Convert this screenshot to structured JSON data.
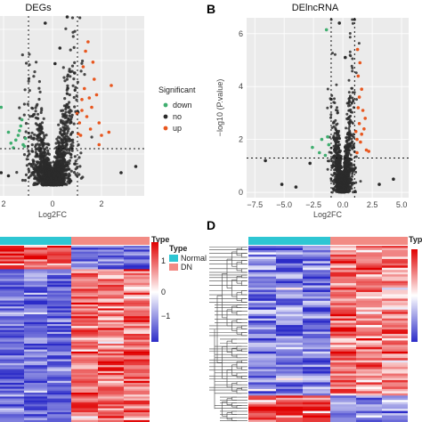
{
  "colors": {
    "down": "#3fae6f",
    "no": "#2b2b2b",
    "up": "#e8571f",
    "normal": "#2ec6d3",
    "dn": "#f28b84",
    "heat_low": "#2c2cc8",
    "heat_mid": "#ffffff",
    "heat_high": "#e00000"
  },
  "panel_labels": {
    "b": "B",
    "d": "D"
  },
  "chart_data": [
    {
      "type": "scatter",
      "title": "DEGs",
      "xlabel": "Log2FC",
      "ylabel": "",
      "x_ticks": [
        "2",
        "0",
        "2"
      ],
      "x_tick_values": [
        -2,
        0,
        2
      ],
      "thresholds": {
        "x": [
          -1,
          1
        ]
      },
      "legend": {
        "title": "Significant",
        "placement": "right",
        "entries": [
          "down",
          "no",
          "up"
        ]
      },
      "series": [
        {
          "name": "down",
          "points": [
            [
              -1.2,
              1.3
            ],
            [
              -1.4,
              1.6
            ],
            [
              -1.6,
              1.2
            ],
            [
              -1.3,
              1.9
            ],
            [
              -1.5,
              1.45
            ],
            [
              -1.8,
              1.7
            ],
            [
              -1.1,
              1.5
            ],
            [
              -1.25,
              2.1
            ],
            [
              -1.7,
              1.35
            ],
            [
              -1.35,
              1.75
            ],
            [
              -2.1,
              2.5
            ],
            [
              -1.15,
              1.25
            ]
          ]
        },
        {
          "name": "no",
          "points": [
            [
              0.6,
              5.4
            ],
            [
              -0.3,
              5.2
            ],
            [
              0.9,
              3.6
            ],
            [
              -2.1,
              0.4
            ],
            [
              3.4,
              0.6
            ],
            [
              -1.8,
              0.3
            ],
            [
              2.8,
              0.4
            ],
            [
              0.3,
              4.4
            ],
            [
              0.1,
              3.9
            ]
          ]
        },
        {
          "name": "up",
          "points": [
            [
              1.2,
              2.4
            ],
            [
              1.3,
              3.1
            ],
            [
              1.5,
              2.8
            ],
            [
              1.4,
              2.2
            ],
            [
              1.7,
              3.4
            ],
            [
              1.25,
              3.8
            ],
            [
              1.6,
              2.5
            ],
            [
              1.9,
              2.0
            ],
            [
              1.1,
              2.0
            ],
            [
              1.35,
              4.3
            ],
            [
              1.8,
              2.9
            ],
            [
              2.4,
              3.2
            ],
            [
              1.45,
              4.6
            ],
            [
              1.15,
              1.6
            ],
            [
              1.55,
              1.8
            ],
            [
              1.2,
              2.75
            ],
            [
              2.0,
              1.6
            ],
            [
              1.65,
              3.95
            ],
            [
              1.05,
              1.65
            ],
            [
              2.3,
              1.7
            ],
            [
              1.9,
              1.3
            ],
            [
              1.0,
              2.3
            ]
          ]
        }
      ]
    },
    {
      "type": "scatter",
      "title": "DElncRNA",
      "xlabel": "Log2FC",
      "ylabel": "−log10 (P.value)",
      "x_ticks": [
        "−7.5",
        "−5.0",
        "−2.5",
        "0.0",
        "2.5",
        "5.0"
      ],
      "x_tick_values": [
        -7.5,
        -5,
        -2.5,
        0,
        2.5,
        5
      ],
      "y_ticks": [
        "0",
        "2",
        "4",
        "6"
      ],
      "y_tick_values": [
        0,
        2,
        4,
        6
      ],
      "xlim": [
        -8.2,
        5.6
      ],
      "ylim": [
        -0.2,
        6.6
      ],
      "thresholds": {
        "x": [
          -1,
          1
        ],
        "y": 1.3
      },
      "series": [
        {
          "name": "down",
          "points": [
            [
              -1.3,
              2.1
            ],
            [
              -1.8,
              2.0
            ],
            [
              -2.0,
              1.5
            ],
            [
              -1.5,
              1.4
            ],
            [
              -1.2,
              1.8
            ],
            [
              -2.6,
              1.7
            ],
            [
              -1.4,
              6.15
            ]
          ]
        },
        {
          "name": "no",
          "points": [
            [
              -6.6,
              1.2
            ],
            [
              -5.2,
              0.3
            ],
            [
              -4.0,
              0.2
            ],
            [
              4.3,
              0.5
            ],
            [
              3.1,
              0.3
            ],
            [
              -2.8,
              1.1
            ],
            [
              -0.3,
              6.4
            ],
            [
              0.2,
              5.1
            ]
          ]
        },
        {
          "name": "up",
          "points": [
            [
              1.2,
              2.0
            ],
            [
              1.4,
              2.6
            ],
            [
              1.3,
              3.2
            ],
            [
              1.6,
              3.9
            ],
            [
              1.8,
              2.4
            ],
            [
              1.5,
              1.9
            ],
            [
              1.3,
              4.4
            ],
            [
              2.0,
              1.6
            ],
            [
              1.7,
              3.1
            ],
            [
              1.1,
              2.3
            ],
            [
              1.45,
              4.9
            ],
            [
              1.25,
              5.4
            ],
            [
              1.9,
              2.8
            ],
            [
              2.2,
              1.55
            ],
            [
              1.6,
              2.2
            ],
            [
              1.2,
              1.5
            ],
            [
              1.4,
              3.6
            ]
          ]
        }
      ]
    },
    {
      "type": "heatmap",
      "legend_title": "Type",
      "groups": [
        {
          "name": "Normal",
          "samples": 3
        },
        {
          "name": "DN",
          "samples": 3
        }
      ],
      "color_scale": {
        "min": -1,
        "max": 1,
        "ticks": [
          "1",
          "0",
          "−1"
        ]
      },
      "has_dendrogram": false
    },
    {
      "type": "heatmap",
      "legend_title": "Typ",
      "groups": [
        {
          "name": "Normal",
          "samples": 3
        },
        {
          "name": "DN",
          "samples": 3
        }
      ],
      "has_dendrogram": true
    }
  ]
}
